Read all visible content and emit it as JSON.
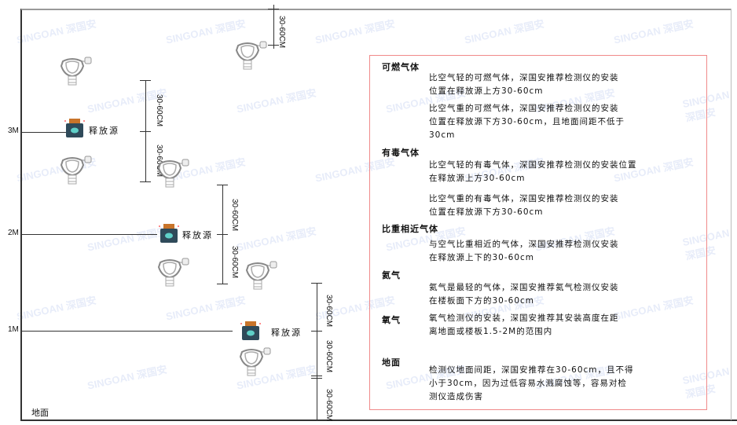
{
  "levels": [
    "3M",
    "2M",
    "1M"
  ],
  "ground_label": "地面",
  "dimension_label": "30-60CM",
  "source_label": "释放源",
  "colors": {
    "box_border": "#f08a8a",
    "source_body": "#2f4a5a",
    "source_cap": "#c8742a",
    "detector": "#888888"
  },
  "watermark": "SINGOAN 深国安",
  "panel": {
    "sections": [
      {
        "heading": "可燃气体",
        "paragraphs": [
          "比空气轻的可燃气体，深国安推荐检测仪的安装\n位置在释放源上方30-60cm",
          "比空气重的可燃气体，深国安推荐检测仪的安装\n位置在释放源下方30-60cm，且地面间距不低于\n30cm"
        ]
      },
      {
        "heading": "有毒气体",
        "paragraphs": [
          "比空气轻的有毒气体，深国安推荐检测仪的安装位置\n在释放源上方30-60cm",
          "比空气重的有毒气体，深国安推荐检测仪的安装\n位置在释放源下方30-60cm"
        ]
      },
      {
        "heading": "比重相近气体",
        "paragraphs": [
          "与空气比重相近的气体，深国安推荐检测仪安装\n在释放源上下的30-60cm"
        ]
      },
      {
        "heading": "氦气",
        "paragraphs": [
          "氦气是最轻的气体，深国安推荐氦气检测仪安装\n在楼板面下方的30-60cm"
        ]
      },
      {
        "heading": "氧气",
        "paragraphs": [
          "氧气检测仪的安装，深国安推荐其安装高度在距\n离地面或楼板1.5-2M的范围内"
        ]
      },
      {
        "heading": "地面",
        "paragraphs": [
          "检测仪地面间距，深国安推荐在30-60cm，且不得\n小于30cm，因为过低容易水溅腐蚀等，容易对检\n测仪造成伤害"
        ]
      }
    ]
  }
}
